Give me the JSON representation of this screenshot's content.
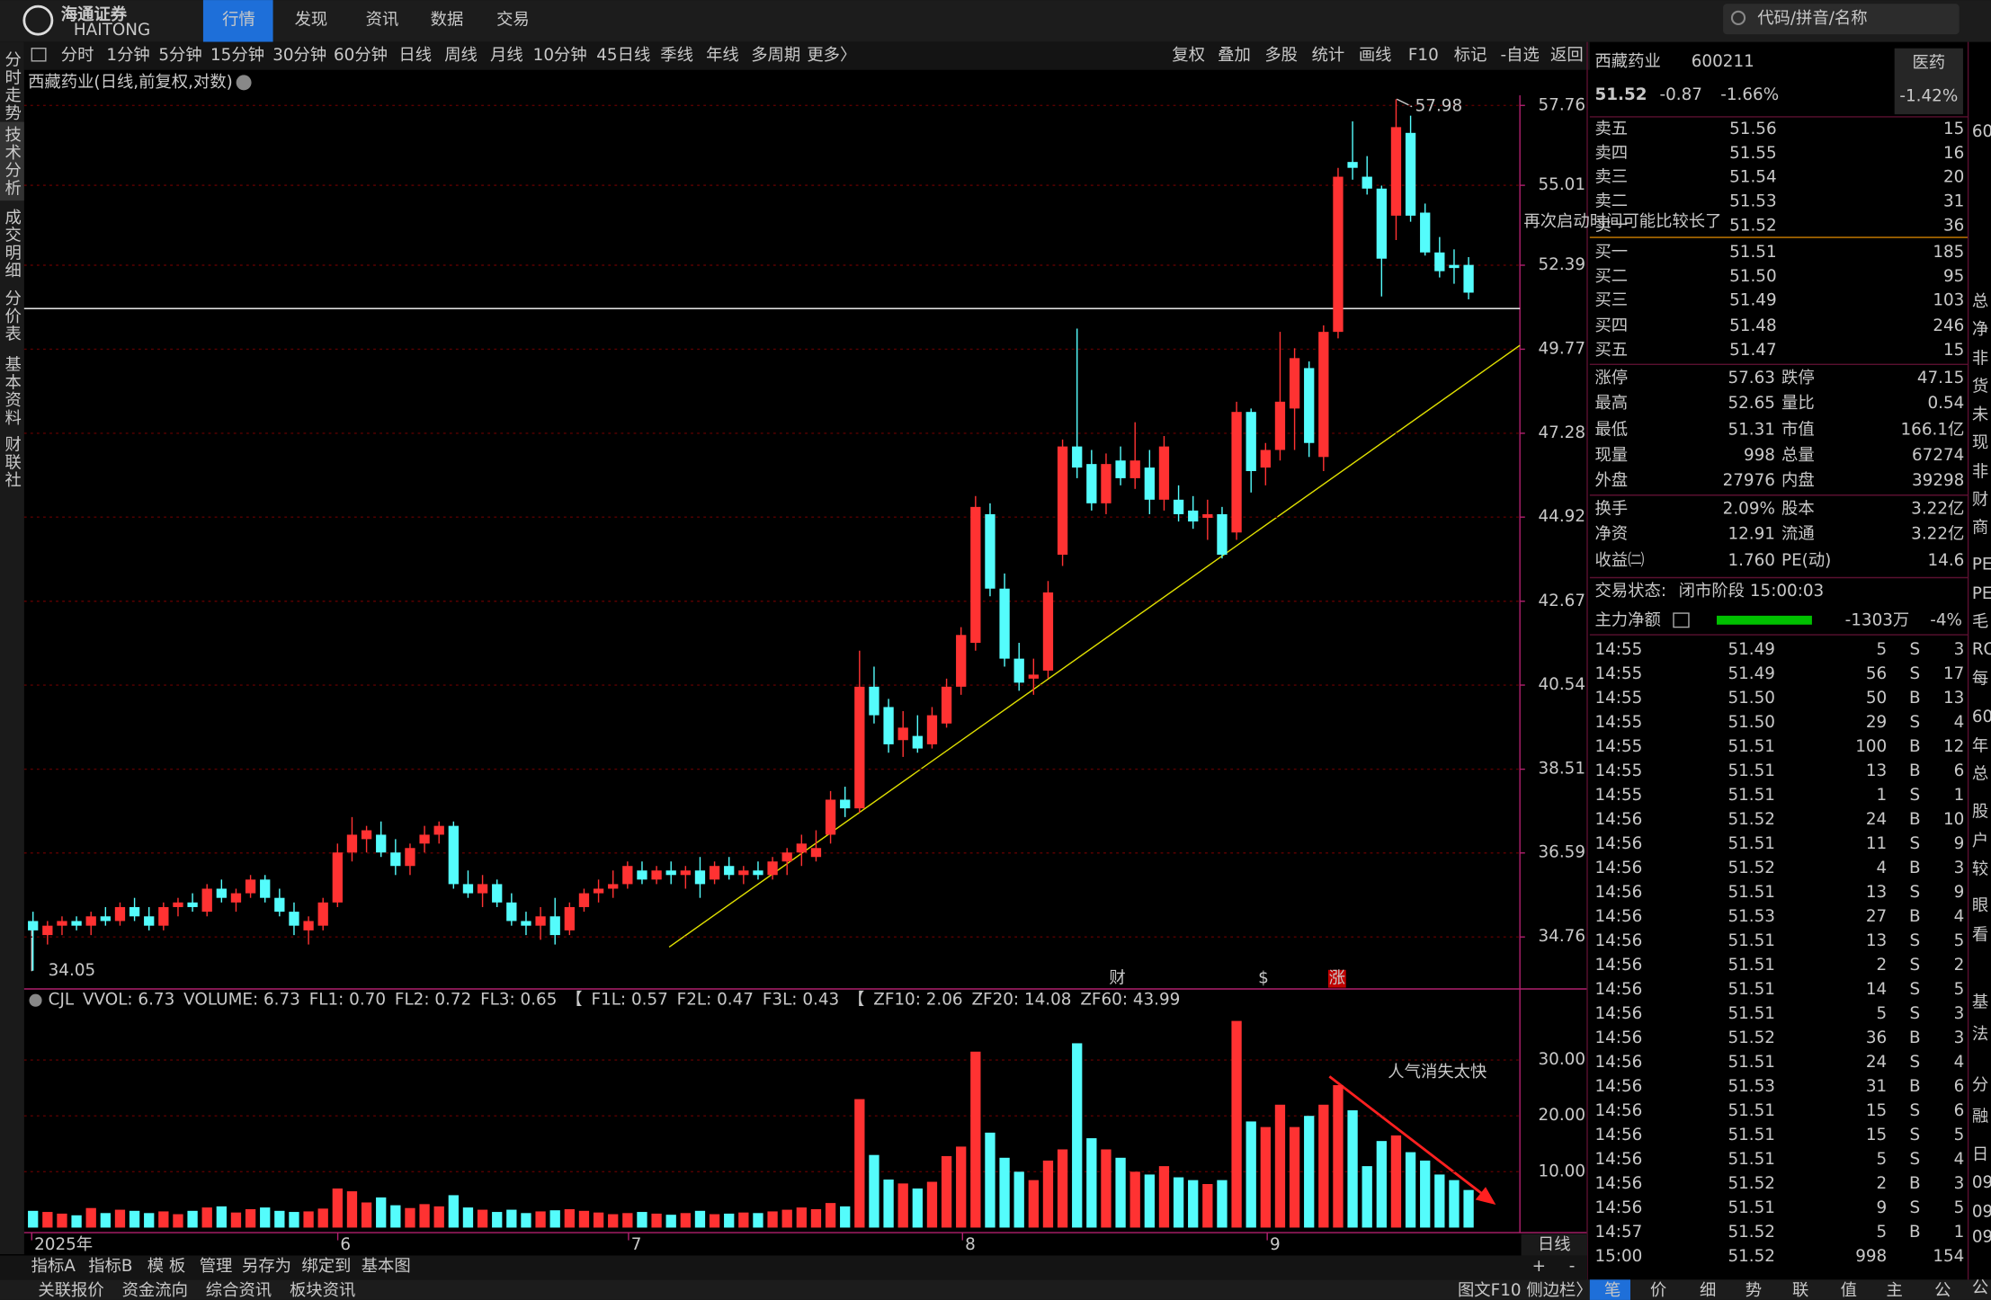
{
  "top_menu": {
    "brand": "海通证券",
    "brand_en": "HAITONG",
    "tabs": [
      "行情",
      "发现",
      "资讯",
      "数据",
      "交易"
    ],
    "search_placeholder": "代码/拼音/名称"
  },
  "side_tabs": [
    "分时走势",
    "技术分析",
    "成交明细",
    "分价表",
    "基本资料",
    "财联社"
  ],
  "toolbar": {
    "periods": [
      "分时",
      "1分钟",
      "5分钟",
      "15分钟",
      "30分钟",
      "60分钟",
      "日线",
      "周线",
      "月线",
      "10分钟",
      "45日线",
      "季线",
      "年线",
      "多周期",
      "更多〉"
    ],
    "tools": [
      "复权",
      "叠加",
      "多股",
      "统计",
      "画线",
      "F10",
      "标记",
      "-自选",
      "返回"
    ]
  },
  "chart_data": [
    {
      "type": "candlestick",
      "title": "西藏药业(日线,前复权,对数)",
      "log_scale": true,
      "grid": true,
      "up_color": "#ff3232",
      "down_color": "#54fcfc",
      "open": [
        35.1,
        34.8,
        35.0,
        35.1,
        35.0,
        35.2,
        35.1,
        35.4,
        35.2,
        35.0,
        35.4,
        35.5,
        35.3,
        35.8,
        35.5,
        35.7,
        36.0,
        35.6,
        35.3,
        34.9,
        35.0,
        35.5,
        36.6,
        36.9,
        37.0,
        36.6,
        36.3,
        36.8,
        37.0,
        37.2,
        35.9,
        35.7,
        35.9,
        35.5,
        35.1,
        35.0,
        35.2,
        34.9,
        35.4,
        35.7,
        35.8,
        35.9,
        36.2,
        36.0,
        36.2,
        36.1,
        36.2,
        36.0,
        36.3,
        36.1,
        36.2,
        36.1,
        36.4,
        36.6,
        36.5,
        37.0,
        37.8,
        37.6,
        40.5,
        40.0,
        39.2,
        39.3,
        39.1,
        39.6,
        40.5,
        41.6,
        45.0,
        43.0,
        41.2,
        40.7,
        40.9,
        43.9,
        46.9,
        46.4,
        45.3,
        46.5,
        46.0,
        46.3,
        45.4,
        45.4,
        45.1,
        44.9,
        45.0,
        44.5,
        47.9,
        46.3,
        46.8,
        48.0,
        49.2,
        46.6,
        50.3,
        55.8,
        55.3,
        54.9,
        54.0,
        56.8,
        54.1,
        52.8,
        52.4,
        52.4
      ],
      "high": [
        35.3,
        35.1,
        35.2,
        35.2,
        35.3,
        35.4,
        35.5,
        35.6,
        35.4,
        35.5,
        35.6,
        35.7,
        35.9,
        36.0,
        35.8,
        36.1,
        36.1,
        35.8,
        35.5,
        35.2,
        35.6,
        36.8,
        37.4,
        37.2,
        37.3,
        36.9,
        36.8,
        37.2,
        37.3,
        37.3,
        36.2,
        36.1,
        36.0,
        35.7,
        35.3,
        35.4,
        35.6,
        35.5,
        35.8,
        36.0,
        36.2,
        36.4,
        36.4,
        36.3,
        36.4,
        36.3,
        36.5,
        36.4,
        36.5,
        36.3,
        36.4,
        36.5,
        36.7,
        37.0,
        37.1,
        38.0,
        38.1,
        41.4,
        41.0,
        40.2,
        39.9,
        39.8,
        40.0,
        40.7,
        42.0,
        45.5,
        45.3,
        43.4,
        41.6,
        41.2,
        43.2,
        47.1,
        50.4,
        46.8,
        46.7,
        46.9,
        47.6,
        46.8,
        47.2,
        45.8,
        45.5,
        45.4,
        45.2,
        48.2,
        48.0,
        47.0,
        50.3,
        49.8,
        49.4,
        50.5,
        55.6,
        57.2,
        56.0,
        55.0,
        57.98,
        57.4,
        54.4,
        53.3,
        52.9,
        52.65
      ],
      "low": [
        34.05,
        34.6,
        34.8,
        34.9,
        34.8,
        35.0,
        35.0,
        35.1,
        34.9,
        34.9,
        35.2,
        35.3,
        35.2,
        35.5,
        35.3,
        35.6,
        35.5,
        35.2,
        34.8,
        34.6,
        34.9,
        35.4,
        36.4,
        36.6,
        36.5,
        36.1,
        36.1,
        36.6,
        36.8,
        35.8,
        35.6,
        35.4,
        35.4,
        35.0,
        34.8,
        34.7,
        34.6,
        34.8,
        35.3,
        35.5,
        35.6,
        35.8,
        35.9,
        35.9,
        35.9,
        35.8,
        35.6,
        35.9,
        36.0,
        35.9,
        36.0,
        36.0,
        36.1,
        36.3,
        36.4,
        36.8,
        37.4,
        37.5,
        39.6,
        38.9,
        38.8,
        38.9,
        39.0,
        39.5,
        40.3,
        41.4,
        42.8,
        41.0,
        40.4,
        40.3,
        40.7,
        43.6,
        46.0,
        45.1,
        45.0,
        45.8,
        45.7,
        45.0,
        45.1,
        44.8,
        44.6,
        44.3,
        43.8,
        44.3,
        45.6,
        45.8,
        46.5,
        46.8,
        46.6,
        46.2,
        50.1,
        55.2,
        54.7,
        51.4,
        53.2,
        53.8,
        52.7,
        52.0,
        51.8,
        51.31
      ],
      "close": [
        34.9,
        35.0,
        35.1,
        35.0,
        35.2,
        35.1,
        35.4,
        35.2,
        35.0,
        35.4,
        35.5,
        35.4,
        35.8,
        35.6,
        35.7,
        36.0,
        35.6,
        35.3,
        35.0,
        35.1,
        35.5,
        36.6,
        37.0,
        37.1,
        36.6,
        36.3,
        36.7,
        37.0,
        37.2,
        35.9,
        35.7,
        35.9,
        35.5,
        35.1,
        35.0,
        35.2,
        34.8,
        35.4,
        35.7,
        35.8,
        35.9,
        36.3,
        36.0,
        36.2,
        36.1,
        36.2,
        35.9,
        36.3,
        36.1,
        36.2,
        36.1,
        36.4,
        36.6,
        36.8,
        36.7,
        37.8,
        37.6,
        40.5,
        39.8,
        39.1,
        39.5,
        39.0,
        39.8,
        40.5,
        41.8,
        45.2,
        43.0,
        41.2,
        40.6,
        40.8,
        42.9,
        46.9,
        46.3,
        45.3,
        46.4,
        46.0,
        46.5,
        45.4,
        46.9,
        45.0,
        44.8,
        45.0,
        43.9,
        47.9,
        46.2,
        46.8,
        48.2,
        49.5,
        47.0,
        50.3,
        55.3,
        55.6,
        54.9,
        52.6,
        57.0,
        54.0,
        52.8,
        52.2,
        52.3,
        51.52
      ],
      "ylim": [
        33.7,
        58.12
      ],
      "yticks": [
        57.76,
        55.01,
        52.39,
        49.77,
        47.28,
        44.92,
        42.67,
        40.54,
        38.51,
        36.59,
        34.76
      ],
      "x_labels": [
        "2025年",
        "6",
        "7",
        "8",
        "9"
      ],
      "events": [
        "财",
        "$",
        "涨"
      ],
      "annotations": [
        "再次启动时间可能比较长了",
        "人气消失太快"
      ]
    },
    {
      "type": "bar",
      "name": "CJL",
      "ylim": [
        0,
        42.5
      ],
      "yticks": [
        {
          "value": 10,
          "label": "10.00"
        },
        {
          "value": 20,
          "label": "20.00"
        },
        {
          "value": 30,
          "label": "30.00"
        }
      ],
      "values": [
        3.0,
        2.8,
        2.5,
        2.2,
        3.5,
        2.6,
        3.2,
        3.0,
        2.6,
        2.9,
        2.4,
        3.0,
        3.6,
        3.8,
        2.7,
        3.3,
        3.6,
        3.0,
        2.8,
        2.9,
        3.4,
        7.0,
        6.5,
        4.5,
        5.4,
        4.0,
        3.5,
        4.2,
        3.8,
        5.8,
        3.6,
        3.2,
        2.8,
        3.2,
        2.6,
        2.9,
        3.1,
        3.3,
        3.0,
        2.7,
        2.4,
        2.6,
        2.8,
        2.5,
        2.3,
        2.6,
        3.0,
        2.4,
        2.5,
        2.7,
        2.6,
        2.9,
        3.2,
        3.6,
        3.3,
        4.4,
        3.8,
        23.0,
        13.0,
        8.6,
        7.9,
        7.0,
        8.2,
        12.8,
        14.5,
        31.5,
        17.0,
        12.5,
        10.0,
        8.5,
        12.0,
        14.0,
        33.0,
        16.0,
        14.0,
        12.5,
        10.0,
        9.5,
        11.0,
        9.0,
        8.5,
        7.8,
        8.5,
        37.0,
        19.0,
        18.0,
        22.0,
        18.0,
        20.0,
        22.0,
        25.5,
        21.0,
        11.0,
        15.5,
        16.5,
        13.5,
        12.0,
        9.5,
        8.5,
        6.73
      ],
      "indicators": [
        {
          "text": "CJL",
          "color": "#c8c8c8"
        },
        {
          "text": "VVOL: 6.73",
          "color": "#ffffff"
        },
        {
          "text": "VOLUME: 6.73",
          "color": "#ffff00"
        },
        {
          "text": "FL1: 0.70",
          "color": "#ffffff"
        },
        {
          "text": "FL2: 0.72",
          "color": "#ffffff"
        },
        {
          "text": "FL3: 0.65",
          "color": "#ff3232"
        },
        {
          "text": "【",
          "color": "#ffff00"
        },
        {
          "text": "F1L: 0.57",
          "color": "#ffffff"
        },
        {
          "text": "F2L: 0.47",
          "color": "#ffffff"
        },
        {
          "text": "F3L: 0.43",
          "color": "#ff3232"
        },
        {
          "text": "【",
          "color": "#ffff00"
        },
        {
          "text": "ZF10: 2.06",
          "color": "#ffff00"
        },
        {
          "text": "ZF20: 14.08",
          "color": "#ff40ff"
        },
        {
          "text": "ZF60: 43.99",
          "color": "#40ff40"
        }
      ]
    }
  ],
  "bottom_bar": {
    "tools": [
      "指标A",
      "指标B",
      "模 板",
      "管理",
      "另存为",
      "绑定到",
      "基本图"
    ],
    "period_button": "日线",
    "zoom": [
      "+",
      "-"
    ],
    "tabs": [
      "关联报价",
      "资金流向",
      "综合资讯",
      "板块资讯"
    ],
    "side": "图文F10 侧边栏〉"
  },
  "quote": {
    "name": "西藏药业",
    "code": "600211",
    "price": "51.52",
    "change": "-0.87",
    "change_pct": "-1.66%",
    "sector": "医药",
    "sector_pct": "-1.42%",
    "asks": [
      {
        "label": "卖五",
        "price": "51.56",
        "vol": "15"
      },
      {
        "label": "卖四",
        "price": "51.55",
        "vol": "16"
      },
      {
        "label": "卖三",
        "price": "51.54",
        "vol": "20"
      },
      {
        "label": "卖二",
        "price": "51.53",
        "vol": "31"
      },
      {
        "label": "卖一",
        "price": "51.52",
        "vol": "36"
      }
    ],
    "bids": [
      {
        "label": "买一",
        "price": "51.51",
        "vol": "185"
      },
      {
        "label": "买二",
        "price": "51.50",
        "vol": "95"
      },
      {
        "label": "买三",
        "price": "51.49",
        "vol": "103"
      },
      {
        "label": "买四",
        "price": "51.48",
        "vol": "246"
      },
      {
        "label": "买五",
        "price": "51.47",
        "vol": "15"
      }
    ],
    "stats": [
      [
        {
          "label": "涨停",
          "value": "57.63",
          "color": "#ff3232"
        },
        {
          "label": "跌停",
          "value": "47.15",
          "color": "#00d000"
        }
      ],
      [
        {
          "label": "最高",
          "value": "52.65",
          "color": "#ff3232"
        },
        {
          "label": "量比",
          "value": "0.54",
          "color": "#e8e000"
        }
      ],
      [
        {
          "label": "最低",
          "value": "51.31",
          "color": "#00d000"
        },
        {
          "label": "市值",
          "value": "166.1亿",
          "color": "#ffffff"
        }
      ],
      [
        {
          "label": "现量",
          "value": "998",
          "color": "#d040d0"
        },
        {
          "label": "总量",
          "value": "67274",
          "color": "#ffffff"
        }
      ],
      [
        {
          "label": "外盘",
          "value": "27976",
          "color": "#ff3232"
        },
        {
          "label": "内盘",
          "value": "39298",
          "color": "#00d000"
        }
      ],
      [
        {
          "label": "换手",
          "value": "2.09%",
          "color": "#ffffff"
        },
        {
          "label": "股本",
          "value": "3.22亿",
          "color": "#ffffff"
        }
      ],
      [
        {
          "label": "净资",
          "value": "12.91",
          "color": "#ffffff"
        },
        {
          "label": "流通",
          "value": "3.22亿",
          "color": "#ffffff"
        }
      ],
      [
        {
          "label": "收益㈡",
          "value": "1.760",
          "color": "#ffffff"
        },
        {
          "label": "PE(动)",
          "value": "14.6",
          "color": "#ffffff"
        }
      ]
    ],
    "status_label": "交易状态:",
    "status": "闭市阶段 15:00:03",
    "main_flow_label": "主力净额",
    "main_flow": "-1303万",
    "main_flow_pct": "-4%",
    "ticks": [
      [
        "14:55",
        "51.49",
        "5",
        "S",
        "3"
      ],
      [
        "14:55",
        "51.49",
        "56",
        "S",
        "17"
      ],
      [
        "14:55",
        "51.50",
        "50",
        "B",
        "13"
      ],
      [
        "14:55",
        "51.50",
        "29",
        "S",
        "4"
      ],
      [
        "14:55",
        "51.51",
        "100",
        "B",
        "12"
      ],
      [
        "14:55",
        "51.51",
        "13",
        "B",
        "6"
      ],
      [
        "14:55",
        "51.51",
        "1",
        "S",
        "1"
      ],
      [
        "14:56",
        "51.52",
        "24",
        "B",
        "10"
      ],
      [
        "14:56",
        "51.51",
        "11",
        "S",
        "9"
      ],
      [
        "14:56",
        "51.52",
        "4",
        "B",
        "3"
      ],
      [
        "14:56",
        "51.51",
        "13",
        "S",
        "9"
      ],
      [
        "14:56",
        "51.53",
        "27",
        "B",
        "4"
      ],
      [
        "14:56",
        "51.51",
        "13",
        "S",
        "5"
      ],
      [
        "14:56",
        "51.51",
        "2",
        "S",
        "2"
      ],
      [
        "14:56",
        "51.51",
        "14",
        "S",
        "5"
      ],
      [
        "14:56",
        "51.51",
        "5",
        "S",
        "3"
      ],
      [
        "14:56",
        "51.52",
        "36",
        "B",
        "3"
      ],
      [
        "14:56",
        "51.51",
        "24",
        "S",
        "4"
      ],
      [
        "14:56",
        "51.53",
        "31",
        "B",
        "6"
      ],
      [
        "14:56",
        "51.51",
        "15",
        "S",
        "6"
      ],
      [
        "14:56",
        "51.51",
        "15",
        "S",
        "5"
      ],
      [
        "14:56",
        "51.51",
        "5",
        "S",
        "4"
      ],
      [
        "14:56",
        "51.52",
        "2",
        "B",
        "3"
      ],
      [
        "14:56",
        "51.51",
        "9",
        "S",
        "5"
      ],
      [
        "14:57",
        "51.52",
        "5",
        "B",
        "1"
      ],
      [
        "15:00",
        "51.52",
        "998",
        "",
        "154"
      ]
    ],
    "tabs": [
      "笔",
      "价",
      "细",
      "势",
      "联",
      "值",
      "主",
      "公"
    ]
  },
  "edge_column": [
    "60",
    "总",
    "净",
    "非",
    "货",
    "未",
    "现",
    "非",
    "财",
    "商",
    "PE",
    "PE",
    "毛",
    "RO",
    "每",
    "60",
    "年",
    "总",
    "股",
    "户",
    "较",
    "眼",
    "看",
    "基",
    "法",
    "分",
    "融",
    "日",
    "09",
    "09",
    "09",
    "公"
  ]
}
